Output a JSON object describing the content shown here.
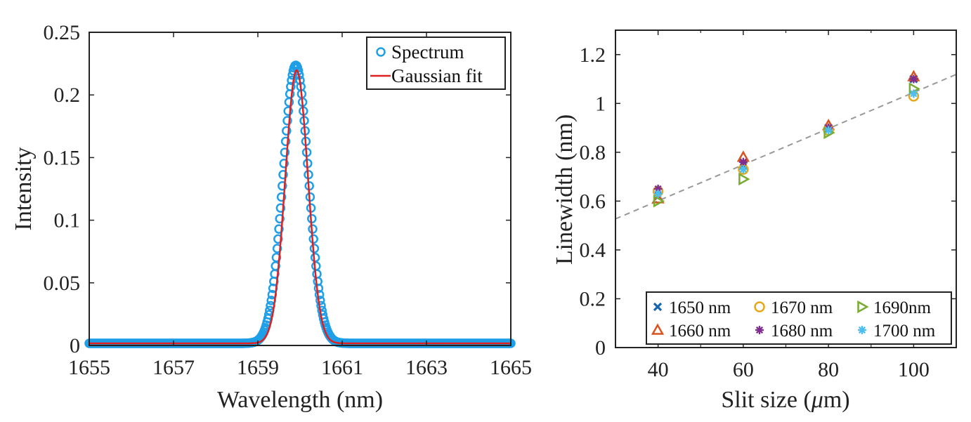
{
  "chart_data": [
    {
      "type": "line",
      "xlabel": "Wavelength (nm)",
      "ylabel": "Intensity",
      "xlim": [
        1655,
        1665
      ],
      "ylim": [
        0,
        0.25
      ],
      "xticks": [
        "1655",
        "1657",
        "1659",
        "1661",
        "1663",
        "1665"
      ],
      "yticks": [
        "0",
        "0.05",
        "0.1",
        "0.15",
        "0.2",
        "0.25"
      ],
      "legend_position": "top-right",
      "series": [
        {
          "name": "Spectrum",
          "marker": "circle",
          "color": "#1f9fe8",
          "peak_center": 1659.9,
          "peak_height": 0.222,
          "sigma": 0.3,
          "x_start": 1655,
          "x_end": 1665,
          "step": 0.02
        },
        {
          "name": "Gaussian fit",
          "marker": "line",
          "color": "#e02020",
          "peak_center": 1659.92,
          "peak_height": 0.218,
          "sigma": 0.27,
          "x_start": 1655,
          "x_end": 1665,
          "step": 0.02
        }
      ]
    },
    {
      "type": "scatter",
      "xlabel_prefix": "Slit size (",
      "xlabel_mu": "μ",
      "xlabel_suffix": "m)",
      "ylabel": "Linewidth (nm)",
      "xlim": [
        30,
        110
      ],
      "ylim": [
        0,
        1.3
      ],
      "xticks": [
        "40",
        "60",
        "80",
        "100"
      ],
      "xtick_values": [
        40,
        60,
        80,
        100
      ],
      "yticks": [
        "0",
        "0.2",
        "0.4",
        "0.6",
        "0.8",
        "1",
        "1.2"
      ],
      "ytick_values": [
        0,
        0.2,
        0.4,
        0.6,
        0.8,
        1.0,
        1.2
      ],
      "legend_position": "bottom-right",
      "fit_line": {
        "slope": 0.0074,
        "intercept": 0.305,
        "color": "#999999",
        "style": "dashed"
      },
      "series": [
        {
          "name": "1650 nm",
          "marker": "x",
          "color": "#1565b0",
          "x": [
            40,
            60,
            80,
            100
          ],
          "y": [
            0.62,
            0.75,
            0.9,
            1.1
          ]
        },
        {
          "name": "1660 nm",
          "marker": "triangle-up",
          "color": "#d9531e",
          "x": [
            40,
            60,
            80,
            100
          ],
          "y": [
            0.61,
            0.78,
            0.91,
            1.11
          ]
        },
        {
          "name": "1670 nm",
          "marker": "circle",
          "color": "#e6a817",
          "x": [
            40,
            60,
            80,
            100
          ],
          "y": [
            0.64,
            0.73,
            0.89,
            1.03
          ]
        },
        {
          "name": "1680 nm",
          "marker": "asterisk",
          "color": "#7e2f8e",
          "x": [
            40,
            60,
            80,
            100
          ],
          "y": [
            0.65,
            0.76,
            0.9,
            1.1
          ]
        },
        {
          "name": "1690nm",
          "marker": "triangle-right",
          "color": "#77ac30",
          "x": [
            40,
            60,
            80,
            100
          ],
          "y": [
            0.6,
            0.69,
            0.88,
            1.06
          ]
        },
        {
          "name": "1700 nm",
          "marker": "asterisk",
          "color": "#4dbeee",
          "x": [
            40,
            60,
            80,
            100
          ],
          "y": [
            0.63,
            0.73,
            0.89,
            1.04
          ]
        }
      ]
    }
  ]
}
